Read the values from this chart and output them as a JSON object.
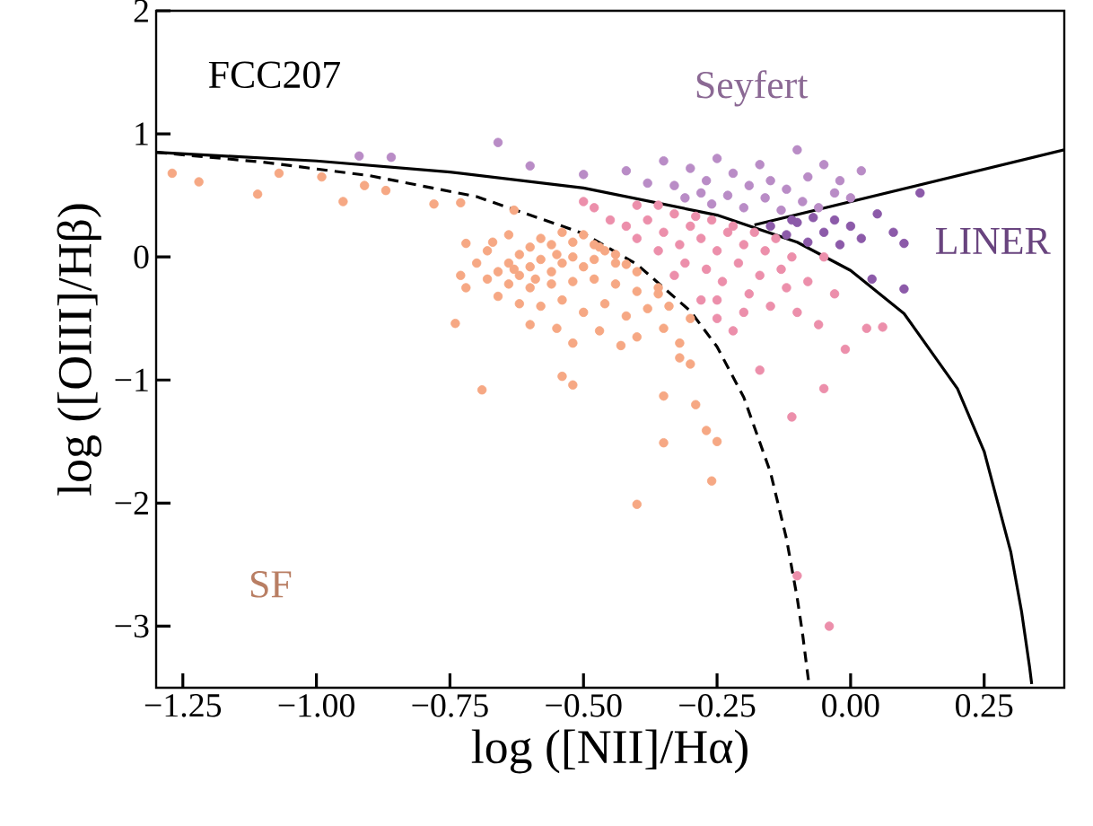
{
  "chart_data": {
    "type": "scatter",
    "xlabel": "log ([NII]/Hα)",
    "ylabel": "log ([OIII]/Hβ)",
    "annotations": [
      "FCC207",
      "Seyfert",
      "LINER",
      "SF"
    ],
    "xlim": [
      -1.3,
      0.4
    ],
    "ylim": [
      -3.5,
      2
    ],
    "xticks": [
      {
        "value": -1.25,
        "label": "−1.25"
      },
      {
        "value": -1.0,
        "label": "−1.00"
      },
      {
        "value": -0.75,
        "label": "−0.75"
      },
      {
        "value": -0.5,
        "label": "−0.50"
      },
      {
        "value": -0.25,
        "label": "−0.25"
      },
      {
        "value": 0,
        "label": "0.00"
      },
      {
        "value": 0.25,
        "label": "0.25"
      }
    ],
    "yticks": [
      {
        "value": -3,
        "label": "−3"
      },
      {
        "value": -2,
        "label": "−2"
      },
      {
        "value": -1,
        "label": "−1"
      },
      0,
      1,
      2
    ],
    "series": [
      {
        "marker": "circle",
        "color": "#f6a884",
        "x": [
          -0.66,
          -0.64,
          -0.62,
          -0.6,
          -0.58,
          -0.56,
          -0.54,
          -0.52,
          -0.5,
          -0.48,
          -0.46,
          -0.62,
          -0.6,
          -0.56,
          -0.52,
          -0.48,
          -0.44,
          -0.42,
          -0.4,
          -0.64,
          -0.6,
          -0.56,
          -0.52,
          -0.48,
          -0.44,
          -0.4,
          -0.36,
          -0.66,
          -0.62,
          -0.58,
          -0.54,
          -0.5,
          -0.46,
          -0.42,
          -0.38,
          -0.34,
          -0.3,
          -0.68,
          -0.7,
          -0.68,
          -0.67,
          -0.58,
          -0.54,
          -0.5,
          -0.47,
          -0.6,
          -0.55,
          -0.47,
          -0.4,
          -0.35,
          -0.32,
          -0.43,
          -0.52,
          -0.72,
          -0.64,
          -0.44,
          -0.36,
          -0.55,
          -0.59,
          -0.63,
          -1.27,
          -1.22,
          -1.11,
          -1.07,
          -0.99,
          -0.95,
          -0.91,
          -0.87,
          -0.78,
          -0.73,
          -0.63,
          -0.69,
          -0.74,
          -0.73,
          -0.72,
          -0.54,
          -0.52,
          -0.4,
          -0.35,
          -0.35,
          -0.29,
          -0.27,
          -0.25,
          -0.26,
          -0.3,
          -0.32
        ],
        "values": [
          -0.12,
          -0.05,
          -0.15,
          -0.08,
          -0.02,
          -0.12,
          -0.05,
          0.0,
          -0.08,
          -0.02,
          0.05,
          0.02,
          0.08,
          0.1,
          0.12,
          0.1,
          0.02,
          -0.06,
          -0.12,
          -0.22,
          -0.25,
          -0.22,
          -0.2,
          -0.18,
          -0.22,
          -0.28,
          -0.3,
          -0.32,
          -0.38,
          -0.4,
          -0.35,
          -0.45,
          -0.38,
          -0.48,
          -0.42,
          -0.4,
          -0.5,
          -0.18,
          -0.05,
          0.05,
          0.12,
          0.15,
          0.2,
          0.18,
          0.08,
          -0.55,
          -0.58,
          -0.6,
          -0.65,
          -0.58,
          -0.7,
          -0.72,
          -0.7,
          -0.25,
          0.18,
          -0.05,
          -0.25,
          0.02,
          -0.18,
          -0.1,
          0.68,
          0.61,
          0.51,
          0.68,
          0.65,
          0.45,
          0.58,
          0.54,
          0.43,
          0.44,
          0.38,
          -1.08,
          -0.54,
          -0.15,
          0.11,
          -0.97,
          -1.04,
          -2.01,
          -1.13,
          -1.51,
          -1.2,
          -1.41,
          -1.5,
          -1.82,
          -0.87,
          -0.82
        ]
      },
      {
        "marker": "circle",
        "color": "#ec8fab",
        "x": [
          -0.42,
          -0.4,
          -0.38,
          -0.36,
          -0.35,
          -0.33,
          -0.32,
          -0.31,
          -0.3,
          -0.29,
          -0.28,
          -0.27,
          -0.26,
          -0.25,
          -0.24,
          -0.23,
          -0.22,
          -0.21,
          -0.2,
          -0.19,
          -0.18,
          -0.17,
          -0.16,
          -0.15,
          -0.14,
          -0.13,
          -0.12,
          -0.11,
          -0.1,
          -0.08,
          -0.06,
          -0.05,
          -0.03,
          -0.28,
          -0.25,
          -0.22,
          -0.2,
          -0.33,
          -0.45,
          -0.48,
          -0.5,
          -0.4,
          -0.36,
          0.03,
          0.06,
          -0.17,
          -0.11,
          -0.05,
          -0.1,
          -0.04,
          -0.01,
          -0.25
        ],
        "values": [
          0.25,
          0.15,
          0.3,
          0.05,
          0.2,
          0.35,
          0.1,
          -0.05,
          0.25,
          0.33,
          0.15,
          -0.1,
          0.3,
          0.05,
          -0.2,
          0.2,
          0.25,
          -0.05,
          0.1,
          -0.3,
          0.2,
          -0.15,
          0.05,
          -0.4,
          0.15,
          -0.1,
          -0.25,
          0.0,
          -0.45,
          -0.2,
          -0.55,
          0.0,
          -0.3,
          -0.35,
          -0.5,
          -0.6,
          -0.45,
          -0.15,
          0.3,
          0.4,
          0.45,
          0.42,
          0.42,
          -0.58,
          -0.57,
          -0.92,
          -1.3,
          -1.07,
          -2.59,
          -3.0,
          -0.75,
          -0.35
        ]
      },
      {
        "marker": "circle",
        "color": "#b98cc6",
        "x": [
          -0.92,
          -0.86,
          -0.66,
          -0.6,
          -0.5,
          -0.42,
          -0.38,
          -0.35,
          -0.33,
          -0.3,
          -0.28,
          -0.27,
          -0.25,
          -0.23,
          -0.22,
          -0.2,
          -0.19,
          -0.17,
          -0.16,
          -0.15,
          -0.13,
          -0.12,
          -0.1,
          -0.09,
          -0.08,
          -0.06,
          -0.05,
          -0.03,
          -0.02,
          0.0,
          0.02,
          -0.31,
          -0.26
        ],
        "values": [
          0.82,
          0.81,
          0.93,
          0.74,
          0.67,
          0.7,
          0.6,
          0.78,
          0.58,
          0.72,
          0.52,
          0.62,
          0.8,
          0.5,
          0.68,
          0.4,
          0.58,
          0.75,
          0.48,
          0.62,
          0.38,
          0.55,
          0.87,
          0.45,
          0.65,
          0.4,
          0.75,
          0.52,
          0.62,
          0.48,
          0.7,
          0.48,
          0.43
        ]
      },
      {
        "marker": "circle",
        "color": "#8c5aa9",
        "x": [
          -0.15,
          -0.12,
          -0.1,
          -0.08,
          -0.07,
          -0.05,
          -0.03,
          -0.02,
          0.0,
          0.02,
          0.05,
          0.08,
          0.1,
          0.1,
          0.04,
          0.13,
          -0.11
        ],
        "values": [
          0.25,
          0.18,
          0.28,
          0.12,
          0.32,
          0.2,
          0.3,
          0.1,
          0.25,
          0.15,
          0.35,
          0.2,
          0.11,
          -0.26,
          -0.18,
          0.52,
          0.3
        ]
      },
      {
        "type": "line",
        "marker": "none",
        "line_style": "dashed",
        "color": "#000000",
        "x": [
          -1.3,
          -1.1,
          -0.9,
          -0.7,
          -0.5,
          -0.4,
          -0.3,
          -0.25,
          -0.2,
          -0.15,
          -0.12,
          -0.1,
          -0.09,
          -0.078
        ],
        "values": [
          0.85,
          0.77,
          0.66,
          0.49,
          0.19,
          -0.06,
          -0.44,
          -0.73,
          -1.14,
          -1.75,
          -2.29,
          -2.77,
          -3.06,
          -3.47
        ]
      },
      {
        "type": "line",
        "marker": "none",
        "line_style": "solid",
        "color": "#000000",
        "x": [
          -1.3,
          -1.0,
          -0.75,
          -0.5,
          -0.25,
          -0.1,
          0.0,
          0.1,
          0.2,
          0.25,
          0.3,
          0.32,
          0.335,
          0.339
        ],
        "values": [
          0.85,
          0.78,
          0.69,
          0.56,
          0.34,
          0.12,
          -0.11,
          -0.46,
          -1.07,
          -1.58,
          -2.4,
          -2.88,
          -3.33,
          -3.47
        ]
      },
      {
        "type": "line",
        "marker": "none",
        "line_style": "solid",
        "color": "#000000",
        "x": [
          -0.18,
          0.4
        ],
        "values": [
          0.26,
          0.87
        ]
      }
    ]
  }
}
